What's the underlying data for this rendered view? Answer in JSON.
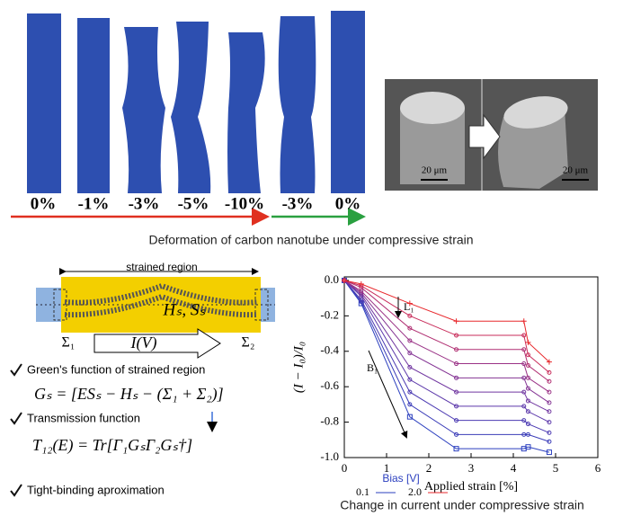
{
  "top_panel": {
    "strain_labels": [
      "0%",
      "-1%",
      "-3%",
      "-5%",
      "-10%",
      "-3%",
      "0%"
    ],
    "scale_bars": [
      "20 μm",
      "20 μm"
    ],
    "caption": "Deformation of carbon nanotube under compressive strain"
  },
  "diagram": {
    "region_label": "strained region",
    "hamiltonian": "Hₛ, Sₛ",
    "sigma_left": "Σ₁",
    "sigma_right": "Σ₂",
    "current": "I(V)",
    "bullets": [
      {
        "text": "Green's function of strained region",
        "equation": "Gₛ = [ESₛ − Hₛ − (Σ₁ + Σ₂)]"
      },
      {
        "text": "Transmission function",
        "equation": "T₁₂(E) = Tr[Γ₁GₛΓ₂Gₛ†]"
      },
      {
        "text": "Tight-binding aproximation"
      }
    ]
  },
  "chart_data": {
    "type": "line",
    "title": "Change in current under compressive strain",
    "x_label": "Applied strain [%]",
    "y_label": "(I − I₀)/I₀",
    "x": [
      0,
      0.4,
      1.55,
      2.65,
      4.25,
      4.35,
      4.85
    ],
    "xlim": [
      0,
      6
    ],
    "xticks": [
      0,
      1,
      2,
      3,
      4,
      5,
      6
    ],
    "ylim": [
      -1.0,
      0.02
    ],
    "yticks": [
      {
        "value": 0,
        "label": "0.0"
      },
      -0.2,
      -0.4,
      -0.6,
      -0.8,
      {
        "value": -1.0,
        "label": "-1.0"
      }
    ],
    "legend_title": "Bias [V]",
    "annotations": [
      "L₁",
      "B₁"
    ],
    "series": [
      {
        "name": "0.1",
        "color": "#2b3fbf",
        "values": [
          0,
          -0.13,
          -0.77,
          -0.95,
          -0.95,
          -0.94,
          -0.97
        ]
      },
      {
        "color": "#3a3cb8",
        "values": [
          0,
          -0.12,
          -0.7,
          -0.87,
          -0.87,
          -0.87,
          -0.91
        ]
      },
      {
        "color": "#4b3ab2",
        "values": [
          0,
          -0.11,
          -0.63,
          -0.79,
          -0.79,
          -0.81,
          -0.86
        ]
      },
      {
        "color": "#5c38aa",
        "values": [
          0,
          -0.09,
          -0.56,
          -0.71,
          -0.71,
          -0.74,
          -0.8
        ]
      },
      {
        "color": "#7036a0",
        "values": [
          0,
          -0.08,
          -0.49,
          -0.63,
          -0.63,
          -0.68,
          -0.74
        ]
      },
      {
        "color": "#843494",
        "values": [
          0,
          -0.07,
          -0.41,
          -0.55,
          -0.55,
          -0.61,
          -0.69
        ]
      },
      {
        "color": "#9a3286",
        "values": [
          0,
          -0.06,
          -0.34,
          -0.47,
          -0.47,
          -0.55,
          -0.63
        ]
      },
      {
        "color": "#b02f72",
        "values": [
          0,
          -0.04,
          -0.27,
          -0.39,
          -0.39,
          -0.48,
          -0.57
        ]
      },
      {
        "color": "#c82c5a",
        "values": [
          0,
          -0.03,
          -0.2,
          -0.31,
          -0.31,
          -0.42,
          -0.52
        ]
      },
      {
        "name": "2.0",
        "color": "#e8282c",
        "values": [
          0,
          -0.02,
          -0.13,
          -0.23,
          -0.23,
          -0.35,
          -0.46
        ]
      }
    ]
  }
}
